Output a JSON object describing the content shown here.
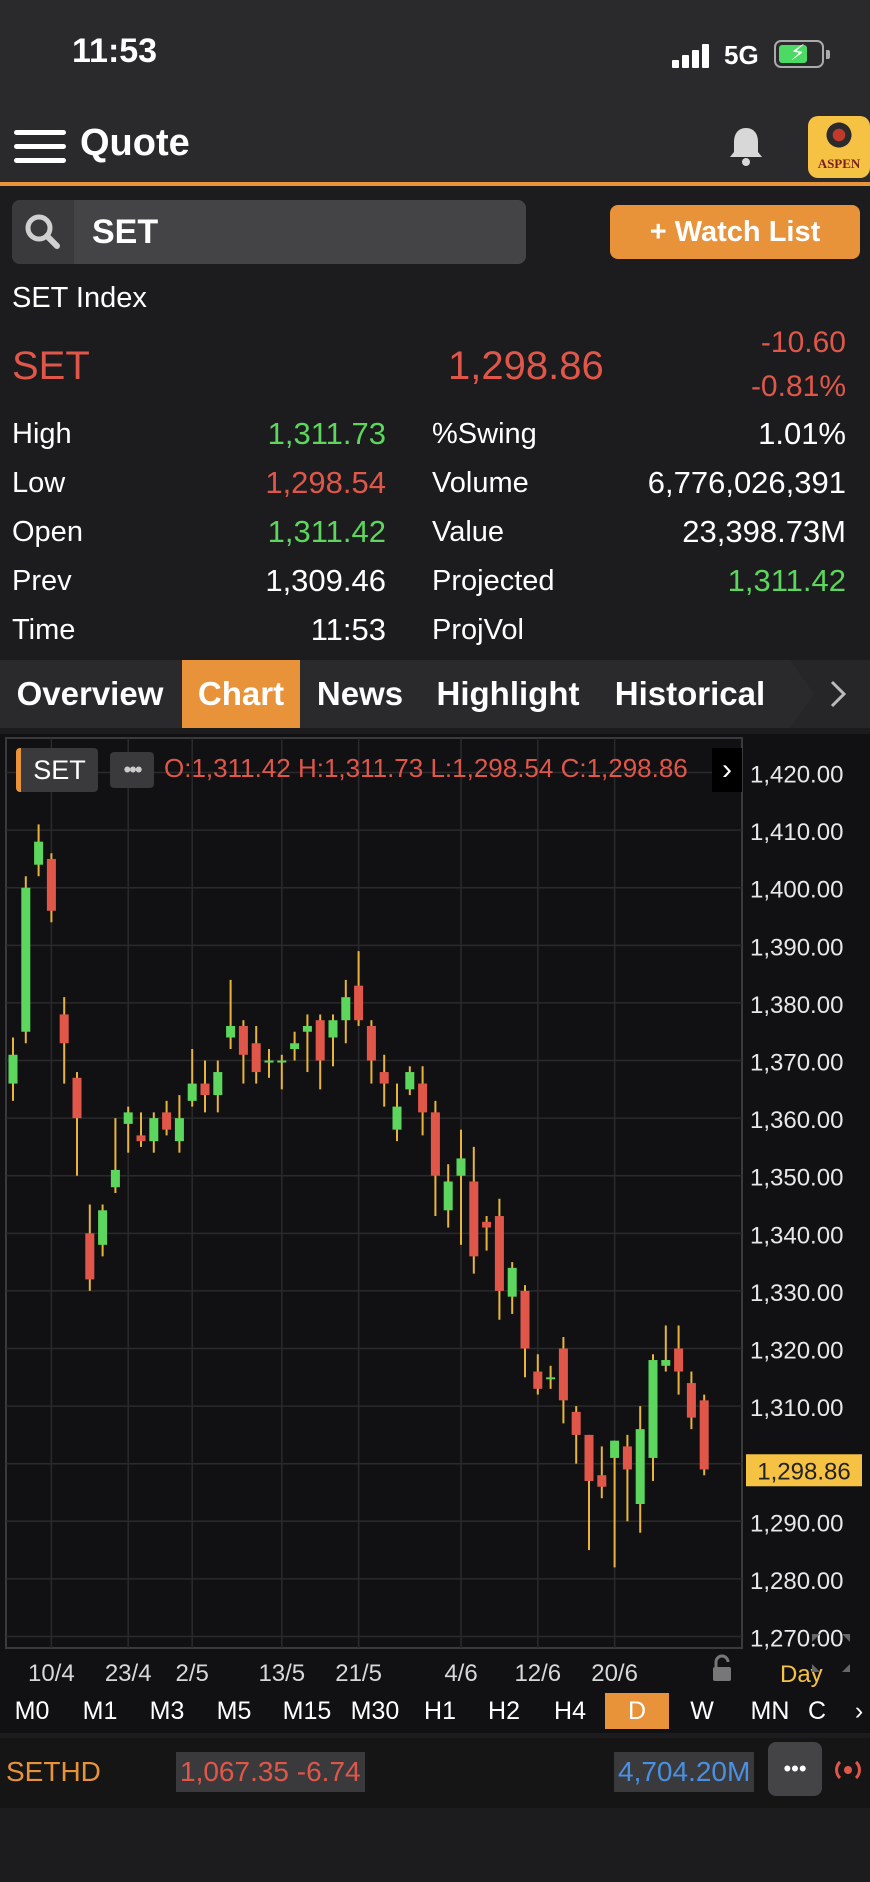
{
  "status_bar": {
    "time": "11:53",
    "network": "5G"
  },
  "header": {
    "title": "Quote",
    "logo_text": "ASPEN"
  },
  "search": {
    "value": "SET",
    "watch_label": "+ Watch List"
  },
  "quote": {
    "index_name": "SET Index",
    "symbol": "SET",
    "last": "1,298.86",
    "change": "-10.60",
    "pct_change": "-0.81%"
  },
  "stats_left": [
    {
      "label": "High",
      "value": "1,311.73",
      "color": "green"
    },
    {
      "label": "Low",
      "value": "1,298.54",
      "color": "red"
    },
    {
      "label": "Open",
      "value": "1,311.42",
      "color": "green"
    },
    {
      "label": "Prev",
      "value": "1,309.46",
      "color": "white"
    },
    {
      "label": "Time",
      "value": "11:53",
      "color": "white"
    }
  ],
  "stats_right": [
    {
      "label": "%Swing",
      "value": "1.01%",
      "color": "white"
    },
    {
      "label": "Volume",
      "value": "6,776,026,391",
      "color": "white"
    },
    {
      "label": "Value",
      "value": "23,398.73M",
      "color": "white"
    },
    {
      "label": "Projected",
      "value": "1,311.42",
      "color": "green"
    },
    {
      "label": "ProjVol",
      "value": "",
      "color": "white"
    }
  ],
  "tabs": [
    "Overview",
    "Chart",
    "News",
    "Highlight",
    "Historical"
  ],
  "active_tab": "Chart",
  "chart_header": {
    "symbol": "SET",
    "more": "•••",
    "ohlc": "O:1,311.42  H:1,311.73  L:1,298.54  C:1,298.86"
  },
  "chart_data": {
    "type": "candlestick",
    "y_ticks": [
      1420,
      1410,
      1400,
      1390,
      1380,
      1370,
      1360,
      1350,
      1340,
      1330,
      1320,
      1310,
      1300,
      1290,
      1280,
      1270
    ],
    "y_tick_labels": [
      "1,420.00",
      "1,410.00",
      "1,400.00",
      "1,390.00",
      "1,380.00",
      "1,370.00",
      "1,360.00",
      "1,350.00",
      "1,340.00",
      "1,330.00",
      "1,320.00",
      "1,310.00",
      "1,300.00",
      "1,290.00",
      "1,280.00",
      "1,270.00"
    ],
    "ylim": [
      1268,
      1426
    ],
    "last_price": 1298.86,
    "last_price_label": "1,298.86",
    "x_labels": [
      "10/4",
      "23/4",
      "2/5",
      "13/5",
      "21/5",
      "4/6",
      "12/6",
      "20/6"
    ],
    "x_label_index": [
      3,
      9,
      14,
      21,
      27,
      35,
      41,
      47
    ],
    "period_label": "Day",
    "candles": [
      [
        1366,
        1374,
        1363,
        1371
      ],
      [
        1375,
        1402,
        1373,
        1400
      ],
      [
        1404,
        1411,
        1402,
        1408
      ],
      [
        1405,
        1406,
        1394,
        1396
      ],
      [
        1378,
        1381,
        1366,
        1373
      ],
      [
        1367,
        1368,
        1350,
        1360
      ],
      [
        1340,
        1345,
        1330,
        1332
      ],
      [
        1338,
        1345,
        1336,
        1344
      ],
      [
        1348,
        1360,
        1347,
        1351
      ],
      [
        1359,
        1362,
        1354,
        1361
      ],
      [
        1357,
        1361,
        1355,
        1356
      ],
      [
        1356,
        1361,
        1354,
        1360
      ],
      [
        1361,
        1363,
        1357,
        1358
      ],
      [
        1356,
        1364,
        1354,
        1360
      ],
      [
        1363,
        1372,
        1362,
        1366
      ],
      [
        1366,
        1370,
        1361,
        1364
      ],
      [
        1364,
        1370,
        1361,
        1368
      ],
      [
        1374,
        1384,
        1372,
        1376
      ],
      [
        1376,
        1377,
        1366,
        1371
      ],
      [
        1373,
        1376,
        1366,
        1368
      ],
      [
        1370,
        1372,
        1367,
        1370
      ],
      [
        1370,
        1371,
        1365,
        1370
      ],
      [
        1372,
        1375,
        1370,
        1373
      ],
      [
        1375,
        1378,
        1368,
        1376
      ],
      [
        1377,
        1378,
        1365,
        1370
      ],
      [
        1374,
        1378,
        1369,
        1377
      ],
      [
        1377,
        1384,
        1373,
        1381
      ],
      [
        1383,
        1389,
        1376,
        1377
      ],
      [
        1376,
        1377,
        1366,
        1370
      ],
      [
        1368,
        1371,
        1362,
        1366
      ],
      [
        1358,
        1366,
        1356,
        1362
      ],
      [
        1365,
        1369,
        1364,
        1368
      ],
      [
        1366,
        1369,
        1357,
        1361
      ],
      [
        1361,
        1363,
        1343,
        1350
      ],
      [
        1344,
        1352,
        1341,
        1349
      ],
      [
        1350,
        1358,
        1338,
        1353
      ],
      [
        1349,
        1355,
        1333,
        1336
      ],
      [
        1342,
        1343,
        1337,
        1341
      ],
      [
        1343,
        1346,
        1325,
        1330
      ],
      [
        1329,
        1335,
        1326,
        1334
      ],
      [
        1330,
        1331,
        1315,
        1320
      ],
      [
        1316,
        1319,
        1312,
        1313
      ],
      [
        1315,
        1317,
        1313,
        1315
      ],
      [
        1320,
        1322,
        1307,
        1311
      ],
      [
        1309,
        1310,
        1300,
        1305
      ],
      [
        1305,
        1305,
        1285,
        1297
      ],
      [
        1298,
        1303,
        1294,
        1296
      ],
      [
        1301,
        1304,
        1282,
        1304
      ],
      [
        1303,
        1305,
        1290,
        1299
      ],
      [
        1293,
        1310,
        1288,
        1306
      ],
      [
        1301,
        1319,
        1297,
        1318
      ],
      [
        1317,
        1324,
        1316,
        1318
      ],
      [
        1320,
        1324,
        1312,
        1316
      ],
      [
        1314,
        1316,
        1306,
        1308
      ],
      [
        1311,
        1312,
        1298,
        1299
      ]
    ]
  },
  "timeframes": [
    "M0",
    "M1",
    "M3",
    "M5",
    "M15",
    "M30",
    "H1",
    "H2",
    "H4",
    "D",
    "W",
    "MN",
    "C"
  ],
  "active_timeframe": "D",
  "bottom_ticker": {
    "symbol": "SETHD",
    "price_change": "1,067.35 -6.74",
    "value": "4,704.20M",
    "more": "•••"
  },
  "colors": {
    "accent": "#e8923a",
    "up": "#5cd65c",
    "down": "#e0574a",
    "price_tag": "#f6c244"
  }
}
